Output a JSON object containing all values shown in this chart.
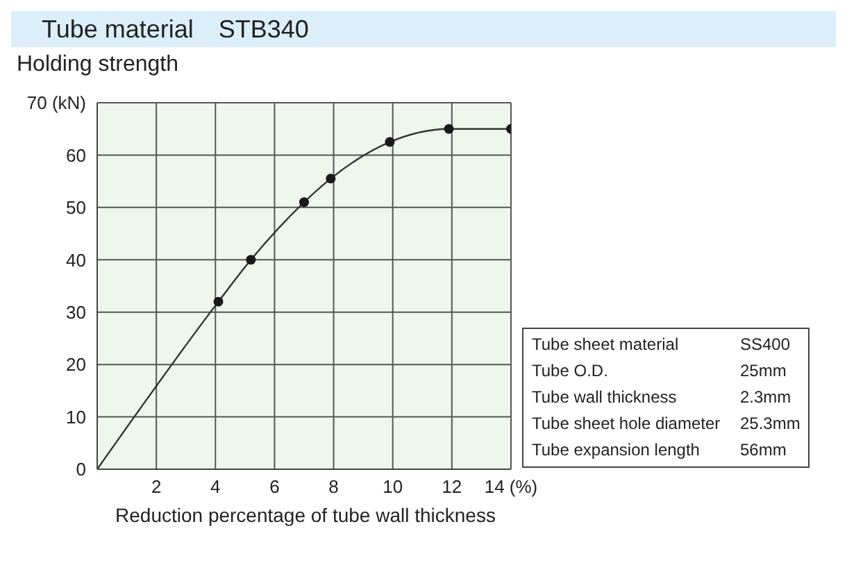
{
  "chart_data": {
    "type": "line",
    "title": "Tube material　STB340",
    "ylabel": "Holding strength",
    "xlabel": "Reduction percentage of tube wall thickness",
    "xlim": [
      0,
      14
    ],
    "xticks": [
      2,
      4,
      6,
      8,
      10,
      12,
      {
        "value": 14,
        "label": "14 (%)"
      }
    ],
    "ylim": [
      0,
      70
    ],
    "yticks": [
      0,
      10,
      20,
      30,
      40,
      50,
      60,
      {
        "value": 70,
        "label": "70 (kN)"
      }
    ],
    "grid": true,
    "series": [
      {
        "type": "line",
        "marker": "none",
        "color": "#333333",
        "x": [
          0,
          4.1,
          5.2,
          7.0,
          7.9,
          9.9,
          11.9,
          14
        ],
        "values": [
          0,
          32,
          40,
          51,
          55.5,
          62.5,
          65,
          65
        ]
      },
      {
        "type": "scatter",
        "marker": "circle",
        "color": "#1a1a1a",
        "x": [
          4.1,
          5.2,
          7.0,
          7.9,
          9.9,
          11.9,
          14
        ],
        "values": [
          32,
          40,
          51,
          55.5,
          62.5,
          65,
          65
        ]
      }
    ],
    "annotations": [
      "Tube sheet material",
      "SS400",
      "Tube O.D.",
      "25mm",
      "Tube wall thickness",
      "2.3mm",
      "Tube sheet hole diameter",
      "25.3mm",
      "Tube expansion length",
      "56mm"
    ]
  }
}
